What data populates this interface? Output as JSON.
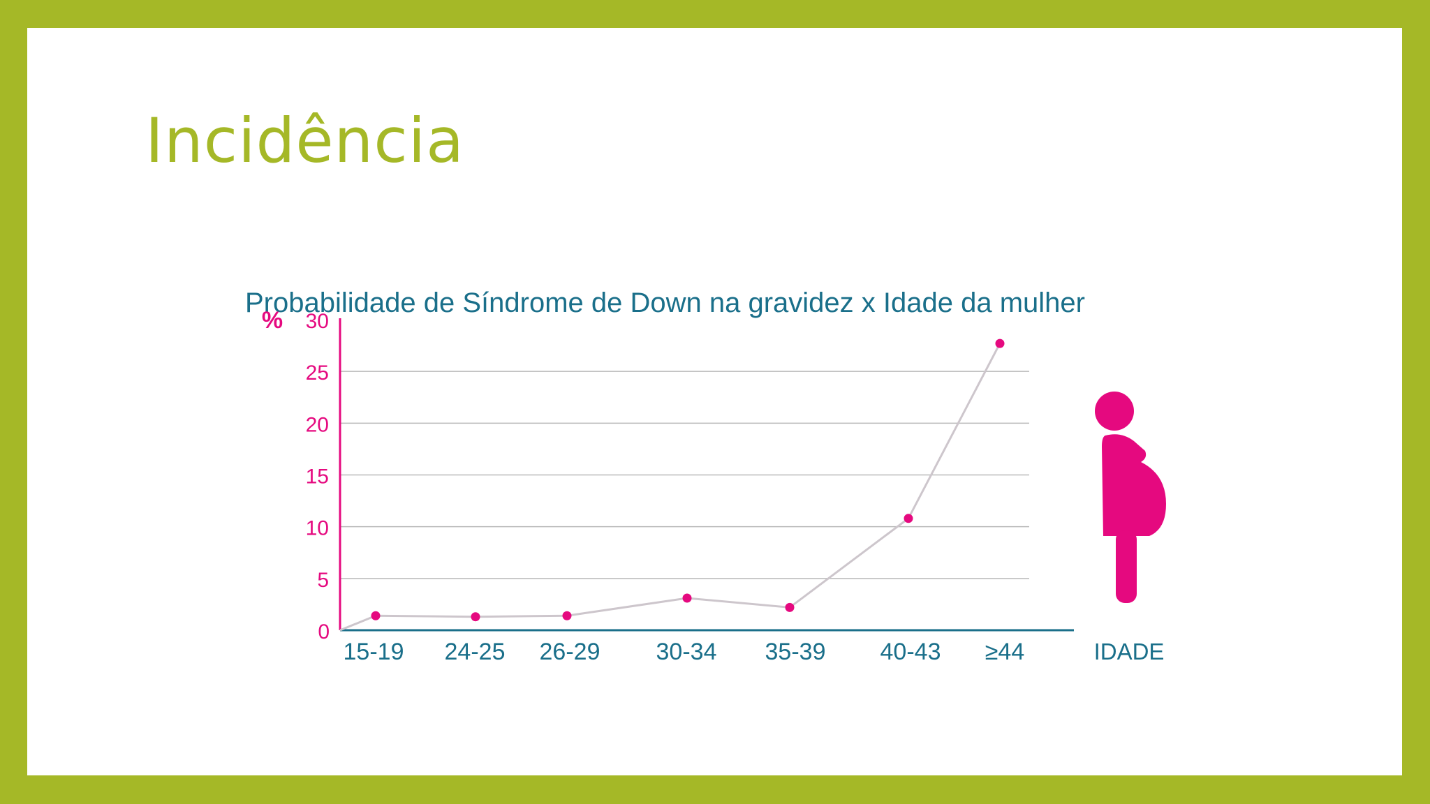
{
  "slide": {
    "title": "Incidência"
  },
  "colors": {
    "frame": "#a5b827",
    "title": "#a5b827",
    "accent": "#e5097f",
    "axis": "#1a6f8a",
    "line": "#cdc6cc",
    "grid": "#b9b9b9"
  },
  "chart_data": {
    "type": "line",
    "title": "Probabilidade de Síndrome de Down na gravidez x Idade da mulher",
    "ylabel": "%",
    "xlabel": "IDADE",
    "categories": [
      "15-19",
      "24-25",
      "26-29",
      "30-34",
      "35-39",
      "40-43",
      "≥44"
    ],
    "values": [
      1.4,
      1.3,
      1.4,
      3.1,
      2.2,
      10.8,
      27.7
    ],
    "ylim": [
      0,
      30
    ],
    "yticks": [
      0,
      5,
      10,
      15,
      20,
      25,
      30
    ],
    "grid": true,
    "icon": "pregnant-woman-icon"
  }
}
